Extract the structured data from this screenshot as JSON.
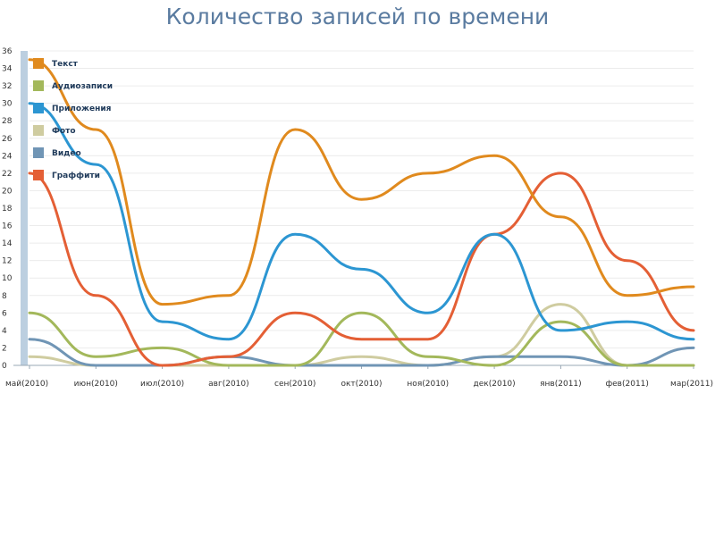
{
  "chart_data": {
    "type": "line",
    "title": "Количество записей по времени",
    "xlabel": "",
    "ylabel": "",
    "ylim": [
      0,
      36
    ],
    "y_ticks": [
      0,
      2,
      4,
      6,
      8,
      10,
      12,
      14,
      16,
      18,
      20,
      22,
      24,
      26,
      28,
      30,
      32,
      34,
      36
    ],
    "categories": [
      "май(2010)",
      "июн(2010)",
      "июл(2010)",
      "авг(2010)",
      "сен(2010)",
      "окт(2010)",
      "ноя(2010)",
      "дек(2010)",
      "янв(2011)",
      "фев(2011)",
      "мар(2011)"
    ],
    "grid": "horizontal",
    "legend_position": "top-left",
    "smooth": true,
    "series": [
      {
        "name": "Текст",
        "color": "#e08a1e",
        "values": [
          35,
          27,
          7,
          8,
          27,
          19,
          22,
          24,
          17,
          8,
          9
        ]
      },
      {
        "name": "Аудиозаписи",
        "color": "#a3b85b",
        "values": [
          6,
          1,
          2,
          0,
          0,
          6,
          1,
          0,
          5,
          0,
          0
        ]
      },
      {
        "name": "Приложения",
        "color": "#2c96d2",
        "values": [
          30,
          23,
          5,
          3,
          15,
          11,
          6,
          15,
          4,
          5,
          3
        ]
      },
      {
        "name": "Фото",
        "color": "#cfcca0",
        "values": [
          1,
          0,
          0,
          0,
          0,
          1,
          0,
          1,
          7,
          0,
          0
        ]
      },
      {
        "name": "Видео",
        "color": "#7095b5",
        "values": [
          3,
          0,
          0,
          1,
          0,
          0,
          0,
          1,
          1,
          0,
          2
        ]
      },
      {
        "name": "Граффити",
        "color": "#e45f35",
        "values": [
          22,
          8,
          0,
          1,
          6,
          3,
          3,
          15,
          22,
          12,
          4
        ]
      }
    ]
  }
}
